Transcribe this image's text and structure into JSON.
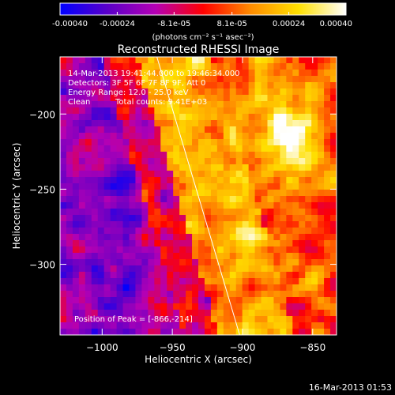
{
  "colorbar": {
    "tick_labels": [
      "-0.00040",
      "-0.00024",
      "-8.1e-05",
      "8.1e-05",
      "0.00024",
      "0.00040"
    ],
    "tick_values": [
      -0.0004,
      -0.00024,
      -8.1e-05,
      8.1e-05,
      0.00024,
      0.0004
    ],
    "range": [
      -0.0004,
      0.0004
    ],
    "units_label": "(photons cm⁻² s⁻¹ asec⁻²)",
    "colormap_stops": [
      "#0000ff",
      "#5a00c8",
      "#b400b4",
      "#ff0000",
      "#ff8c00",
      "#ffe000",
      "#ffffff"
    ]
  },
  "chart_data": {
    "type": "heatmap",
    "title": "Reconstructed RHESSI Image",
    "xlabel": "Heliocentric X (arcsec)",
    "ylabel": "Heliocentric Y (arcsec)",
    "xlim": [
      -1030,
      -833
    ],
    "ylim": [
      -347,
      -162
    ],
    "x_ticks": [
      -1000,
      -950,
      -900,
      -850
    ],
    "x_tick_labels": [
      "−1000",
      "−950",
      "−900",
      "−850"
    ],
    "y_ticks": [
      -200,
      -250,
      -300
    ],
    "y_tick_labels": [
      "−200",
      "−250",
      "−300"
    ],
    "value_range": [
      -0.0004,
      0.0004
    ],
    "limb_line": [
      {
        "x": -961,
        "y": -162
      },
      {
        "x": -902,
        "y": -347
      }
    ],
    "peak": {
      "x": -866,
      "y": -214
    },
    "annotations": {
      "time_range": "14-Mar-2013 19:41:44.000 to 19:46:34.000",
      "detectors": "Detectors: 3F 5F 6F 7F 8F 9F, Att 0",
      "energy_range": "Energy Range: 12.0 - 25.0 keV",
      "method": "Clean",
      "total_counts": "Total counts: 9.41E+03",
      "peak_label": "Position of Peak = [-866,-214]"
    }
  },
  "footer": {
    "timestamp": "16-Mar-2013 01:53"
  }
}
